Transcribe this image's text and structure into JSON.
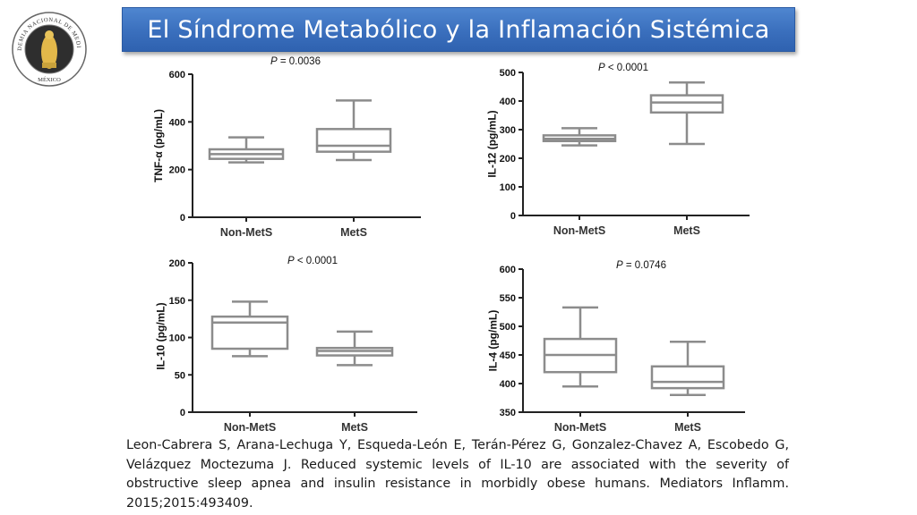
{
  "title": "El Síndrome Metabólico y la Inflamación Sistémica",
  "logo": {
    "arc_text": "ACADEMIA NACIONAL DE MEDICINA",
    "bottom_text": "MÉXICO"
  },
  "chart_data": [
    {
      "type": "box",
      "p_label": "P",
      "p_value": "= 0.0036",
      "ylabel": "TNF-α (pg/mL)",
      "ylim": [
        0,
        600
      ],
      "yticks": [
        "0",
        "200",
        "400",
        "600"
      ],
      "categories": [
        "Non-MetS",
        "MetS"
      ],
      "boxes": [
        {
          "min": 230,
          "q1": 245,
          "median": 265,
          "q3": 285,
          "max": 335
        },
        {
          "min": 240,
          "q1": 275,
          "median": 300,
          "q3": 370,
          "max": 490
        }
      ]
    },
    {
      "type": "box",
      "p_label": "P",
      "p_value": "< 0.0001",
      "ylabel": "IL-12 (pg/mL)",
      "ylim": [
        0,
        500
      ],
      "yticks": [
        "0",
        "100",
        "200",
        "300",
        "400",
        "500"
      ],
      "categories": [
        "Non-MetS",
        "MetS"
      ],
      "boxes": [
        {
          "min": 245,
          "q1": 260,
          "median": 268,
          "q3": 280,
          "max": 305
        },
        {
          "min": 250,
          "q1": 360,
          "median": 395,
          "q3": 420,
          "max": 465
        }
      ]
    },
    {
      "type": "box",
      "p_label": "P",
      "p_value": "< 0.0001",
      "ylabel": "IL-10 (pg/mL)",
      "ylim": [
        0,
        200
      ],
      "yticks": [
        "0",
        "50",
        "100",
        "150",
        "200"
      ],
      "categories": [
        "Non-MetS",
        "MetS"
      ],
      "boxes": [
        {
          "min": 75,
          "q1": 85,
          "median": 120,
          "q3": 128,
          "max": 148
        },
        {
          "min": 63,
          "q1": 76,
          "median": 82,
          "q3": 86,
          "max": 108
        }
      ]
    },
    {
      "type": "box",
      "p_label": "P",
      "p_value": "= 0.0746",
      "ylabel": "IL-4 (pg/mL)",
      "ylim": [
        350,
        600
      ],
      "yticks": [
        "350",
        "400",
        "450",
        "500",
        "550",
        "600"
      ],
      "categories": [
        "Non-MetS",
        "MetS"
      ],
      "boxes": [
        {
          "min": 395,
          "q1": 420,
          "median": 450,
          "q3": 478,
          "max": 533
        },
        {
          "min": 380,
          "q1": 392,
          "median": 403,
          "q3": 430,
          "max": 473
        }
      ]
    }
  ],
  "reference": "Leon-Cabrera S, Arana-Lechuga Y, Esqueda-León E, Terán-Pérez G, Gonzalez-Chavez A, Escobedo G, Velázquez Moctezuma J. Reduced systemic levels of IL-10 are associated with the severity of obstructive sleep apnea and insulin resistance in morbidly obese humans. Mediators Inflamm. 2015;2015:493409."
}
